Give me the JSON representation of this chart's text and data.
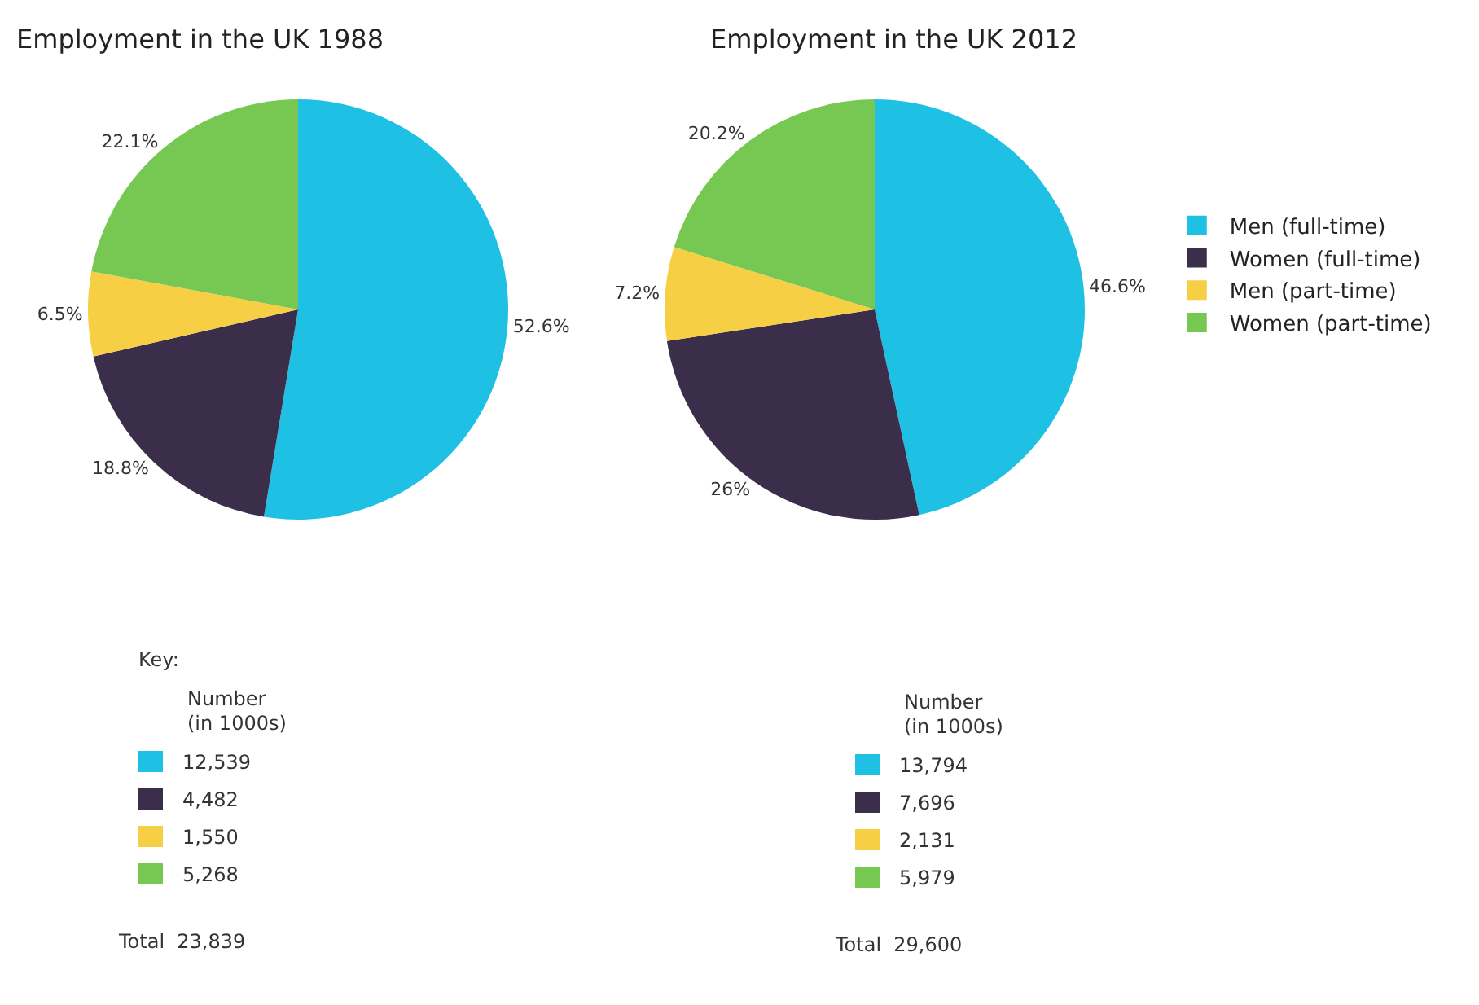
{
  "chart_data": [
    {
      "type": "pie",
      "title": "Employment in the UK 1988",
      "categories": [
        null,
        null,
        null,
        null
      ],
      "values": [
        52.6,
        18.8,
        6.5,
        22.1
      ],
      "value_labels": [
        "52.6%",
        "18.8%",
        "6.5%",
        "22.1%"
      ],
      "colors": [
        "#1ec0e4",
        "#3b2e4a",
        "#f7cf45",
        "#77c853"
      ],
      "annotations": [
        "Key:",
        "Number\n(in 1000s)",
        "12,539",
        "4,482",
        "1,550",
        "5,268",
        "Total  23,839"
      ]
    },
    {
      "type": "pie",
      "title": "Employment in the UK 2012",
      "categories": [
        "Men (full-time)",
        "Women (full-time)",
        "Men (part-time)",
        "Women (part-time)"
      ],
      "values": [
        46.6,
        26,
        7.2,
        20.2
      ],
      "value_labels": [
        "46.6%",
        "26%",
        "7.2%",
        "20.2%"
      ],
      "colors": [
        "#1ec0e4",
        "#3b2e4a",
        "#f7cf45",
        "#77c853"
      ],
      "legend": "right",
      "annotations": [
        "Number\n(in 1000s)",
        "13,794",
        "7,696",
        "2,131",
        "5,979",
        "Total  29,600"
      ]
    }
  ]
}
